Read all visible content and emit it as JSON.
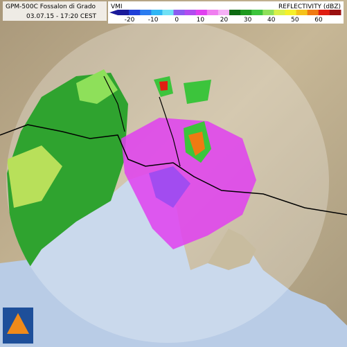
{
  "header": {
    "title": "GPM-500C Fossalon di Grado",
    "timestamp": "03.07.15 - 17:20 CEST"
  },
  "legend": {
    "product": "VMI",
    "title": "REFLECTIVITY (dBZ)",
    "ticks": [
      -20,
      -10,
      0,
      10,
      20,
      30,
      40,
      50,
      60
    ],
    "colors": [
      "#1a1a9a",
      "#1f3fd8",
      "#2b7cf0",
      "#2fb6f5",
      "#6fe0f5",
      "#8a5cf0",
      "#b14cf0",
      "#e040f0",
      "#f07ef0",
      "#f5b0f5",
      "#0d6b12",
      "#1f9a1f",
      "#3cc43c",
      "#8ee05a",
      "#d8f04a",
      "#f5f02a",
      "#f5c21a",
      "#f07a12",
      "#e01e12",
      "#9a1010"
    ]
  }
}
